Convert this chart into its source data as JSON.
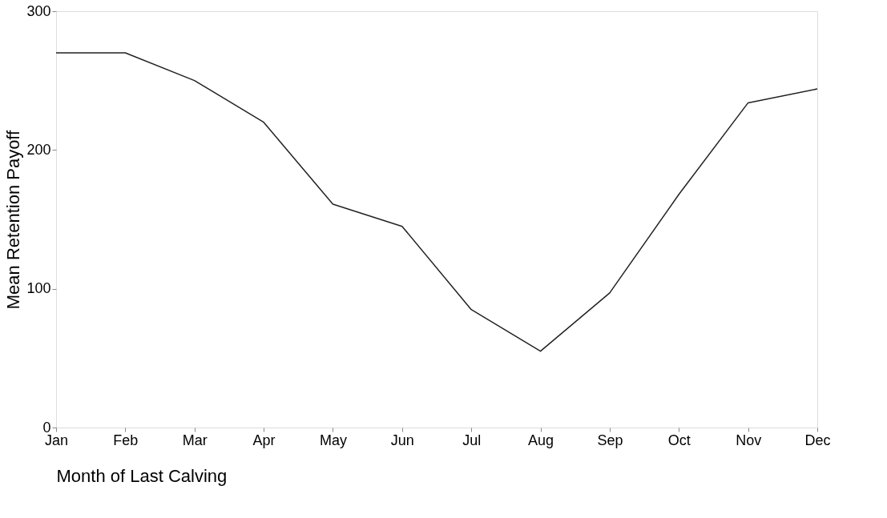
{
  "chart_data": {
    "type": "line",
    "xlabel": "Month of Last Calving",
    "ylabel": "Mean Retention Payoff",
    "categories": [
      "Jan",
      "Feb",
      "Mar",
      "Apr",
      "May",
      "Jun",
      "Jul",
      "Aug",
      "Sep",
      "Oct",
      "Nov",
      "Dec"
    ],
    "series": [
      {
        "color": "#222222",
        "values": [
          270,
          270,
          250,
          220,
          161,
          145,
          85,
          55,
          97,
          168,
          234,
          244
        ]
      }
    ],
    "ylim": [
      0,
      300
    ],
    "yticks": [
      0,
      100,
      200,
      300
    ],
    "grid": false,
    "legend": false,
    "marker": "none",
    "line_style": "solid"
  }
}
